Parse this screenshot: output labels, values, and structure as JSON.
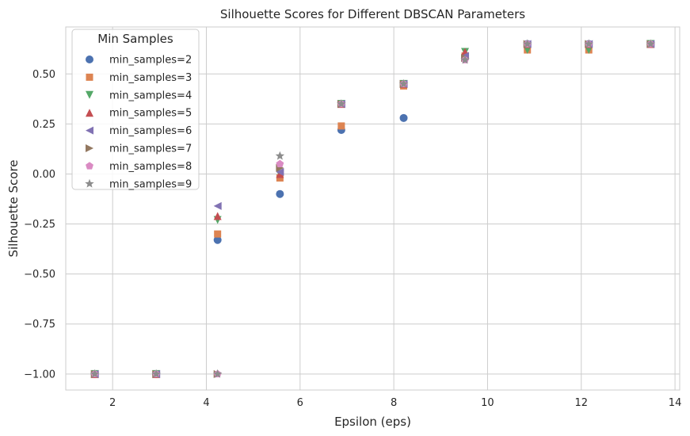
{
  "chart_data": {
    "type": "scatter",
    "title": "Silhouette Scores for Different DBSCAN Parameters",
    "xlabel": "Epsilon (eps)",
    "ylabel": "Silhouette Score",
    "xlim": [
      1.0,
      14.1
    ],
    "ylim": [
      -1.08,
      0.735
    ],
    "xticks": [
      2,
      4,
      6,
      8,
      10,
      12,
      14
    ],
    "xtick_labels": [
      "2",
      "4",
      "6",
      "8",
      "10",
      "12",
      "14"
    ],
    "yticks": [
      -1.0,
      -0.75,
      -0.5,
      -0.25,
      0.0,
      0.25,
      0.5
    ],
    "ytick_labels": [
      "−1.00",
      "−0.75",
      "−0.50",
      "−0.25",
      "0.00",
      "0.25",
      "0.50"
    ],
    "grid": true,
    "legend": {
      "title": "Min Samples",
      "placement": "top-left"
    },
    "x": [
      1.62,
      2.93,
      4.24,
      5.57,
      6.88,
      8.21,
      9.52,
      10.85,
      12.16,
      13.48
    ],
    "series": [
      {
        "name": "min_samples=2",
        "marker": "circle",
        "color": "#4c72b0",
        "values": [
          -1.0,
          -1.0,
          -0.33,
          -0.1,
          0.22,
          0.28,
          0.59,
          0.65,
          0.65,
          0.65
        ]
      },
      {
        "name": "min_samples=3",
        "marker": "square",
        "color": "#dd8452",
        "values": [
          -1.0,
          -1.0,
          -0.3,
          -0.02,
          0.24,
          0.44,
          0.59,
          0.62,
          0.62,
          0.65
        ]
      },
      {
        "name": "min_samples=4",
        "marker": "triangle-down",
        "color": "#55a868",
        "values": [
          -1.0,
          -1.0,
          -0.23,
          0.0,
          0.35,
          0.45,
          0.61,
          0.62,
          0.62,
          0.65
        ]
      },
      {
        "name": "min_samples=5",
        "marker": "triangle-up",
        "color": "#c44e52",
        "values": [
          -1.0,
          -1.0,
          -0.21,
          0.0,
          0.35,
          0.45,
          0.61,
          0.65,
          0.65,
          0.65
        ]
      },
      {
        "name": "min_samples=6",
        "marker": "triangle-left",
        "color": "#8172b3",
        "values": [
          -1.0,
          -1.0,
          -0.16,
          0.01,
          0.35,
          0.45,
          0.59,
          0.65,
          0.65,
          0.65
        ]
      },
      {
        "name": "min_samples=7",
        "marker": "triangle-right",
        "color": "#937860",
        "values": [
          -1.0,
          -1.0,
          -1.0,
          0.03,
          0.35,
          0.45,
          0.58,
          0.65,
          0.65,
          0.65
        ]
      },
      {
        "name": "min_samples=8",
        "marker": "pentagon",
        "color": "#da8bc3",
        "values": [
          -1.0,
          -1.0,
          -1.0,
          0.05,
          0.35,
          0.45,
          0.57,
          0.65,
          0.65,
          0.65
        ]
      },
      {
        "name": "min_samples=9",
        "marker": "star",
        "color": "#8c8c8c",
        "values": [
          -1.0,
          -1.0,
          -1.0,
          0.09,
          0.35,
          0.45,
          0.57,
          0.65,
          0.65,
          0.65
        ]
      }
    ]
  }
}
